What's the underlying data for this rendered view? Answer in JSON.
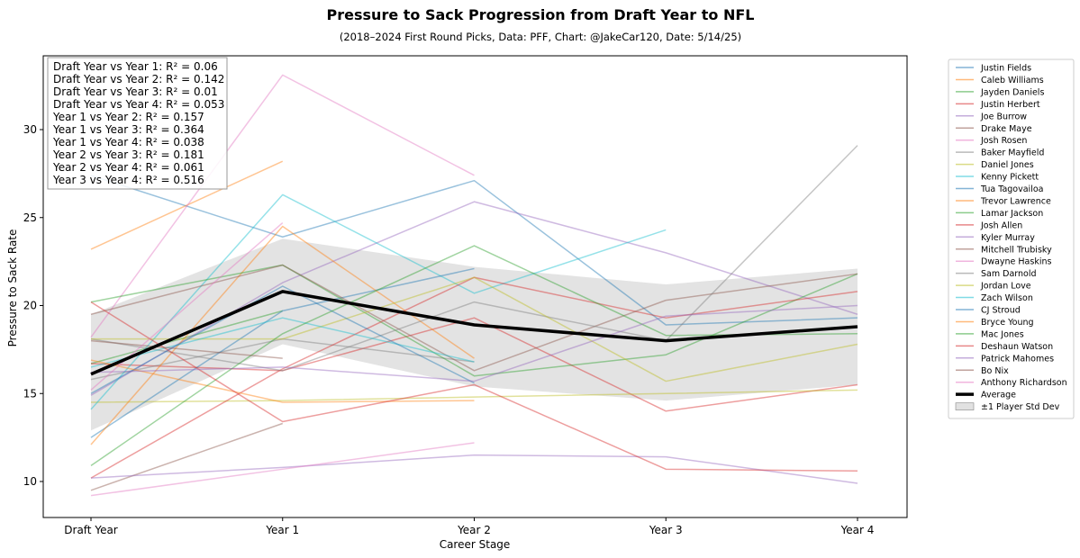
{
  "chart_data": {
    "type": "line",
    "title": "Pressure to Sack Progression from Draft Year to NFL",
    "subtitle": "(2018–2024 First Round Picks, Data: PFF, Chart: @JakeCar120, Date: 5/14/25)",
    "xlabel": "Career Stage",
    "ylabel": "Pressure to Sack Rate",
    "categories": [
      "Draft Year",
      "Year 1",
      "Year 2",
      "Year 3",
      "Year 4"
    ],
    "ylim": [
      8,
      34
    ],
    "yticks": [
      "10",
      "15",
      "20",
      "25",
      "30"
    ],
    "grid": false,
    "legend_position": "outside-right",
    "annotations": [
      "Draft Year vs Year 1: R² = 0.06",
      "Draft Year vs Year 2: R² = 0.142",
      "Draft Year vs Year 3: R² = 0.01",
      "Draft Year vs Year 4: R² = 0.053",
      "Year 1 vs Year 2: R² = 0.157",
      "Year 1 vs Year 3: R² = 0.364",
      "Year 1 vs Year 4: R² = 0.038",
      "Year 2 vs Year 3: R² = 0.181",
      "Year 2 vs Year 4: R² = 0.061",
      "Year 3 vs Year 4: R² = 0.516"
    ],
    "series": [
      {
        "name": "Justin Fields",
        "color": "#1f77b4",
        "values": [
          27.4,
          23.9,
          27.1,
          18.9,
          19.3
        ]
      },
      {
        "name": "Caleb Williams",
        "color": "#ff7f0e",
        "values": [
          23.2,
          28.2,
          null,
          null,
          null
        ]
      },
      {
        "name": "Jayden Daniels",
        "color": "#2ca02c",
        "values": [
          16.7,
          19.7,
          null,
          null,
          null
        ]
      },
      {
        "name": "Justin Herbert",
        "color": "#d62728",
        "values": [
          16.7,
          16.3,
          19.3,
          14.0,
          15.5
        ]
      },
      {
        "name": "Joe Burrow",
        "color": "#9467bd",
        "values": [
          14.9,
          21.3,
          25.9,
          23.0,
          19.5
        ]
      },
      {
        "name": "Drake Maye",
        "color": "#8c564b",
        "values": [
          9.5,
          13.3,
          null,
          null,
          null
        ]
      },
      {
        "name": "Josh Rosen",
        "color": "#e377c2",
        "values": [
          18.2,
          33.1,
          27.4,
          null,
          null
        ]
      },
      {
        "name": "Baker Mayfield",
        "color": "#7f7f7f",
        "values": [
          15.8,
          18.1,
          16.8,
          null,
          null
        ]
      },
      {
        "name": "Daniel Jones",
        "color": "#bcbd22",
        "values": [
          14.5,
          14.6,
          14.8,
          15.0,
          15.2
        ]
      },
      {
        "name": "Kenny Pickett",
        "color": "#17becf",
        "values": [
          14.1,
          26.3,
          20.7,
          24.3,
          null
        ]
      },
      {
        "name": "Tua Tagovailoa",
        "color": "#1f77b4",
        "values": [
          12.5,
          19.7,
          22.1,
          null,
          null
        ]
      },
      {
        "name": "Trevor Lawrence",
        "color": "#ff7f0e",
        "values": [
          12.1,
          24.5,
          17.0,
          null,
          null
        ]
      },
      {
        "name": "Lamar Jackson",
        "color": "#2ca02c",
        "values": [
          20.2,
          22.3,
          16.0,
          17.2,
          21.8
        ]
      },
      {
        "name": "Josh Allen",
        "color": "#d62728",
        "values": [
          10.2,
          16.4,
          21.6,
          19.3,
          20.8
        ]
      },
      {
        "name": "Kyler Murray",
        "color": "#9467bd",
        "values": [
          10.2,
          10.8,
          11.5,
          11.4,
          9.9
        ]
      },
      {
        "name": "Mitchell Trubisky",
        "color": "#8c564b",
        "values": [
          19.5,
          22.3,
          16.3,
          20.3,
          21.8
        ]
      },
      {
        "name": "Dwayne Haskins",
        "color": "#e377c2",
        "values": [
          9.2,
          10.7,
          12.2,
          null,
          null
        ]
      },
      {
        "name": "Sam Darnold",
        "color": "#7f7f7f",
        "values": [
          18.1,
          16.3,
          20.2,
          18.0,
          29.1
        ]
      },
      {
        "name": "Jordan Love",
        "color": "#bcbd22",
        "values": [
          18.1,
          18.1,
          21.6,
          15.7,
          17.8
        ]
      },
      {
        "name": "Zach Wilson",
        "color": "#17becf",
        "values": [
          16.5,
          19.3,
          16.8,
          null,
          null
        ]
      },
      {
        "name": "CJ Stroud",
        "color": "#1f77b4",
        "values": [
          15.0,
          21.1,
          15.6,
          null,
          null
        ]
      },
      {
        "name": "Bryce Young",
        "color": "#ff7f0e",
        "values": [
          16.9,
          14.5,
          14.6,
          null,
          null
        ]
      },
      {
        "name": "Mac Jones",
        "color": "#2ca02c",
        "values": [
          10.9,
          18.4,
          23.4,
          18.3,
          18.4
        ]
      },
      {
        "name": "Deshaun Watson",
        "color": "#d62728",
        "values": [
          20.2,
          13.4,
          15.5,
          10.7,
          10.6
        ]
      },
      {
        "name": "Patrick Mahomes",
        "color": "#9467bd",
        "values": [
          16.2,
          16.5,
          15.7,
          19.4,
          20.0
        ]
      },
      {
        "name": "Bo Nix",
        "color": "#8c564b",
        "values": [
          18.0,
          17.0,
          null,
          null,
          null
        ]
      },
      {
        "name": "Anthony Richardson",
        "color": "#e377c2",
        "values": [
          15.2,
          24.7,
          null,
          null,
          null
        ]
      }
    ],
    "average": {
      "name": "Average",
      "color": "#000000",
      "values": [
        16.1,
        20.8,
        18.9,
        18.0,
        18.8
      ]
    },
    "std_band": {
      "name": "±1 Player Std Dev",
      "color": "#a9a9a9",
      "upper": [
        19.5,
        23.8,
        22.2,
        21.2,
        22.1
      ],
      "lower": [
        12.9,
        17.8,
        15.4,
        14.6,
        15.5
      ]
    }
  }
}
